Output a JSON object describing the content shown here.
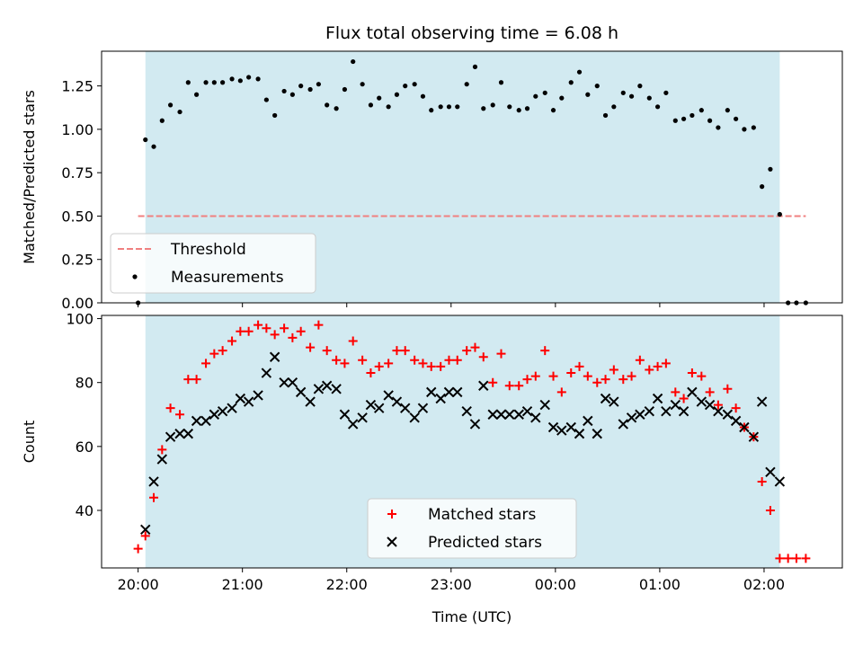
{
  "chart_data": [
    {
      "type": "scatter",
      "title": "Flux total observing time = 6.08 h",
      "xlabel": "",
      "ylabel": "Matched/Predicted stars",
      "xlim": [
        -0.35,
        6.75
      ],
      "ylim": [
        0,
        1.45
      ],
      "yticks": [
        0,
        0.25,
        0.5,
        0.75,
        1.0,
        1.25
      ],
      "ytick_labels": [
        "0.00",
        "0.25",
        "0.50",
        "0.75",
        "1.00",
        "1.25"
      ],
      "shaded_region": [
        0.07,
        6.15
      ],
      "shade_color": "#d2eaf1",
      "threshold": {
        "name": "Threshold",
        "value": 0.5,
        "x_range": [
          0,
          6.4
        ],
        "color": "#f08080"
      },
      "legend": [
        "Threshold",
        "Measurements"
      ],
      "legend_position": "lower-left",
      "series": [
        {
          "name": "Measurements",
          "marker": "dot",
          "color": "#000000",
          "x": [
            0.0,
            0.07,
            0.15,
            0.23,
            0.31,
            0.4,
            0.48,
            0.56,
            0.65,
            0.73,
            0.81,
            0.9,
            0.98,
            1.06,
            1.15,
            1.23,
            1.31,
            1.4,
            1.48,
            1.56,
            1.65,
            1.73,
            1.81,
            1.9,
            1.98,
            2.06,
            2.15,
            2.23,
            2.31,
            2.4,
            2.48,
            2.56,
            2.65,
            2.73,
            2.81,
            2.9,
            2.98,
            3.06,
            3.15,
            3.23,
            3.31,
            3.4,
            3.48,
            3.56,
            3.65,
            3.73,
            3.81,
            3.9,
            3.98,
            4.06,
            4.15,
            4.23,
            4.31,
            4.4,
            4.48,
            4.56,
            4.65,
            4.73,
            4.81,
            4.9,
            4.98,
            5.06,
            5.15,
            5.23,
            5.31,
            5.4,
            5.48,
            5.56,
            5.65,
            5.73,
            5.81,
            5.9,
            5.98,
            6.06,
            6.15,
            6.23,
            6.31,
            6.4
          ],
          "y": [
            0.0,
            0.94,
            0.9,
            1.05,
            1.14,
            1.1,
            1.27,
            1.2,
            1.27,
            1.27,
            1.27,
            1.29,
            1.28,
            1.3,
            1.29,
            1.17,
            1.08,
            1.22,
            1.2,
            1.25,
            1.23,
            1.26,
            1.14,
            1.12,
            1.23,
            1.39,
            1.26,
            1.14,
            1.18,
            1.13,
            1.2,
            1.25,
            1.26,
            1.19,
            1.11,
            1.13,
            1.13,
            1.13,
            1.26,
            1.36,
            1.12,
            1.14,
            1.27,
            1.13,
            1.11,
            1.12,
            1.19,
            1.21,
            1.11,
            1.18,
            1.27,
            1.33,
            1.2,
            1.25,
            1.08,
            1.13,
            1.21,
            1.19,
            1.25,
            1.18,
            1.13,
            1.21,
            1.05,
            1.06,
            1.08,
            1.11,
            1.05,
            1.01,
            1.11,
            1.06,
            1.0,
            1.01,
            0.67,
            0.77,
            0.51,
            0.0,
            0.0,
            0.0
          ]
        }
      ]
    },
    {
      "type": "scatter",
      "title": "",
      "xlabel": "Time (UTC)",
      "ylabel": "Count",
      "xlim": [
        -0.35,
        6.75
      ],
      "ylim": [
        22,
        101
      ],
      "yticks": [
        40,
        60,
        80,
        100
      ],
      "ytick_labels": [
        "40",
        "60",
        "80",
        "100"
      ],
      "xticks": [
        0,
        1,
        2,
        3,
        4,
        5,
        6
      ],
      "xtick_labels": [
        "20:00",
        "21:00",
        "22:00",
        "23:00",
        "00:00",
        "01:00",
        "02:00"
      ],
      "shaded_region": [
        0.07,
        6.15
      ],
      "shade_color": "#d2eaf1",
      "legend": [
        "Matched stars",
        "Predicted stars"
      ],
      "legend_position": "lower-center",
      "series": [
        {
          "name": "Matched stars",
          "marker": "plus",
          "color": "#ff0000",
          "x": [
            0.0,
            0.07,
            0.15,
            0.23,
            0.31,
            0.4,
            0.48,
            0.56,
            0.65,
            0.73,
            0.81,
            0.9,
            0.98,
            1.06,
            1.15,
            1.23,
            1.31,
            1.4,
            1.48,
            1.56,
            1.65,
            1.73,
            1.81,
            1.9,
            1.98,
            2.06,
            2.15,
            2.23,
            2.31,
            2.4,
            2.48,
            2.56,
            2.65,
            2.73,
            2.81,
            2.9,
            2.98,
            3.06,
            3.15,
            3.23,
            3.31,
            3.4,
            3.48,
            3.56,
            3.65,
            3.73,
            3.81,
            3.9,
            3.98,
            4.06,
            4.15,
            4.23,
            4.31,
            4.4,
            4.48,
            4.56,
            4.65,
            4.73,
            4.81,
            4.9,
            4.98,
            5.06,
            5.15,
            5.23,
            5.31,
            5.4,
            5.48,
            5.56,
            5.65,
            5.73,
            5.81,
            5.9,
            5.98,
            6.06,
            6.15,
            6.23,
            6.31,
            6.4
          ],
          "y": [
            28,
            32,
            44,
            59,
            72,
            70,
            81,
            81,
            86,
            89,
            90,
            93,
            96,
            96,
            98,
            97,
            95,
            97,
            94,
            96,
            91,
            98,
            90,
            87,
            86,
            93,
            87,
            83,
            85,
            86,
            90,
            90,
            87,
            86,
            85,
            85,
            87,
            87,
            90,
            91,
            88,
            80,
            89,
            79,
            79,
            81,
            82,
            90,
            82,
            77,
            83,
            85,
            82,
            80,
            81,
            84,
            81,
            82,
            87,
            84,
            85,
            86,
            77,
            75,
            83,
            82,
            77,
            73,
            78,
            72,
            66,
            63,
            49,
            40,
            25,
            25,
            25,
            25
          ]
        },
        {
          "name": "Predicted stars",
          "marker": "x",
          "color": "#000000",
          "x": [
            0.07,
            0.15,
            0.23,
            0.31,
            0.4,
            0.48,
            0.56,
            0.65,
            0.73,
            0.81,
            0.9,
            0.98,
            1.06,
            1.15,
            1.23,
            1.31,
            1.4,
            1.48,
            1.56,
            1.65,
            1.73,
            1.81,
            1.9,
            1.98,
            2.06,
            2.15,
            2.23,
            2.31,
            2.4,
            2.48,
            2.56,
            2.65,
            2.73,
            2.81,
            2.9,
            2.98,
            3.06,
            3.15,
            3.23,
            3.31,
            3.4,
            3.48,
            3.56,
            3.65,
            3.73,
            3.81,
            3.9,
            3.98,
            4.06,
            4.15,
            4.23,
            4.31,
            4.4,
            4.48,
            4.56,
            4.65,
            4.73,
            4.81,
            4.9,
            4.98,
            5.06,
            5.15,
            5.23,
            5.31,
            5.4,
            5.48,
            5.56,
            5.65,
            5.73,
            5.81,
            5.9,
            5.98,
            6.06,
            6.15
          ],
          "y": [
            34,
            49,
            56,
            63,
            64,
            64,
            68,
            68,
            70,
            71,
            72,
            75,
            74,
            76,
            83,
            88,
            80,
            80,
            77,
            74,
            78,
            79,
            78,
            70,
            67,
            69,
            73,
            72,
            76,
            74,
            72,
            69,
            72,
            77,
            75,
            77,
            77,
            71,
            67,
            79,
            70,
            70,
            70,
            70,
            71,
            69,
            73,
            66,
            65,
            66,
            64,
            68,
            64,
            75,
            74,
            67,
            69,
            70,
            71,
            75,
            71,
            73,
            71,
            77,
            74,
            73,
            71,
            70,
            68,
            66,
            63,
            74,
            52,
            49
          ]
        }
      ]
    }
  ]
}
